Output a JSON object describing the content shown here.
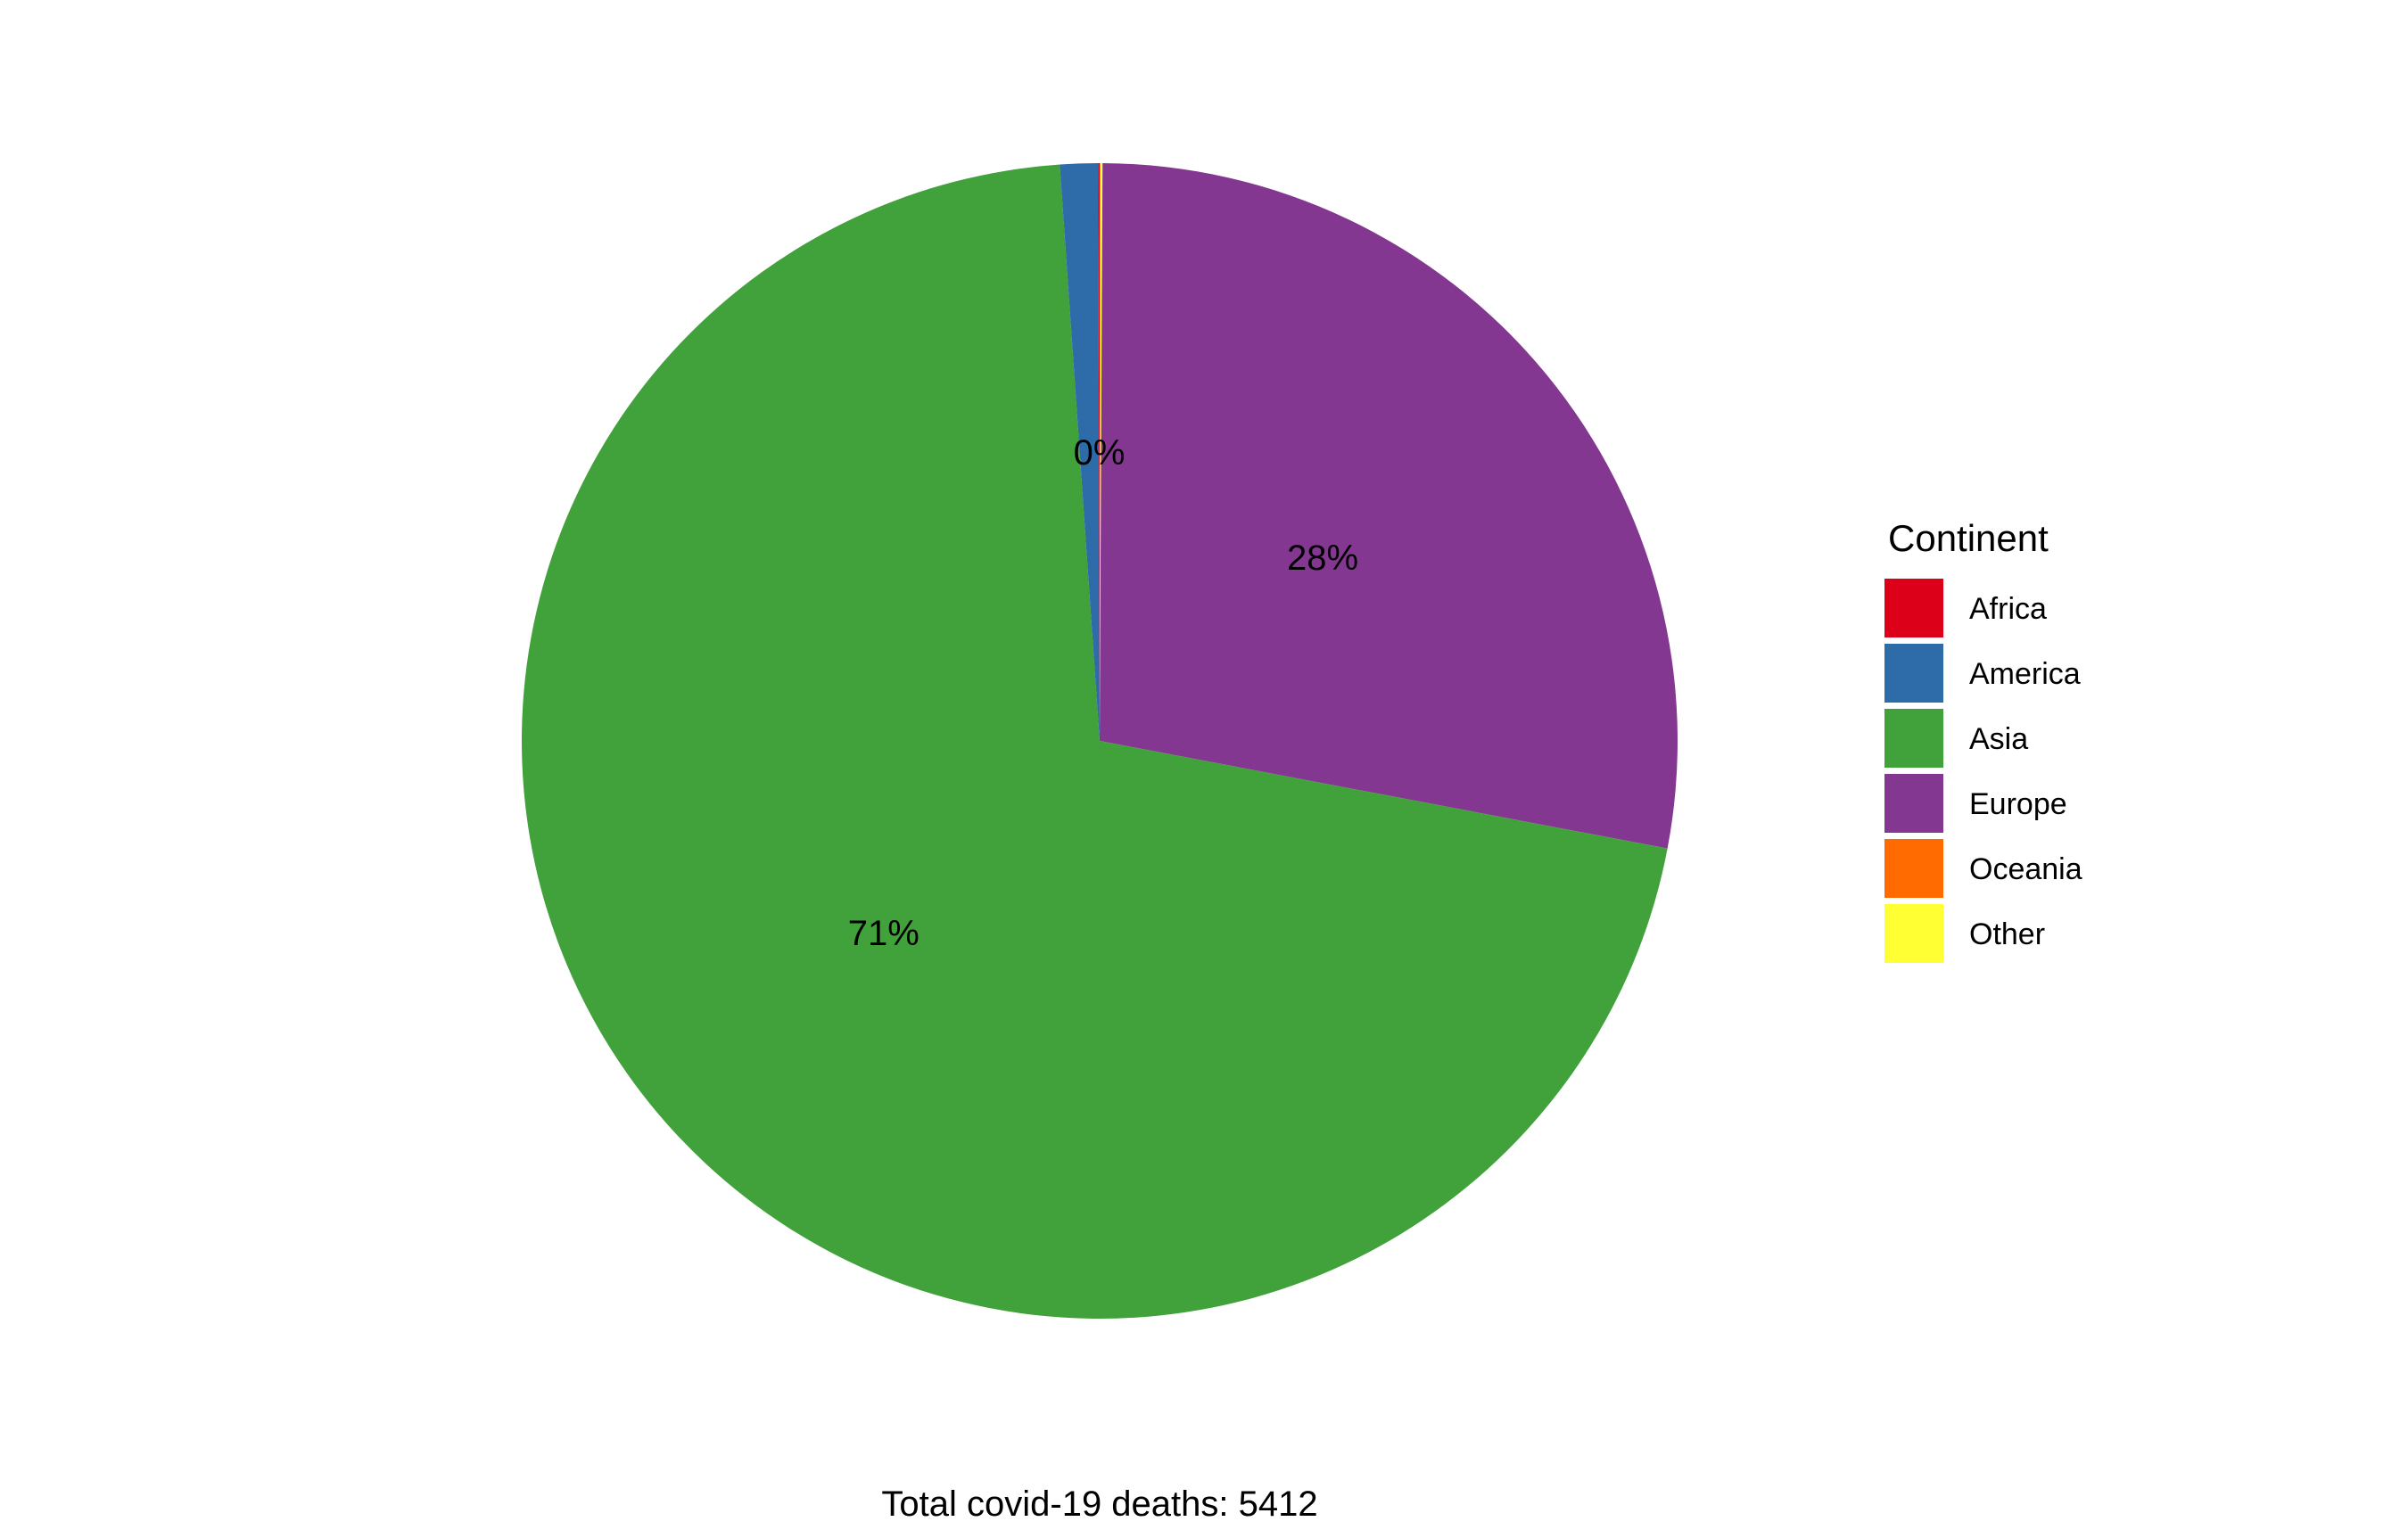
{
  "chart_data": {
    "type": "pie",
    "caption": "Total covid-19 deaths: 5412",
    "legend": {
      "title": "Continent",
      "placement": "right"
    },
    "start_angle_deg": 0,
    "direction": "clockwise",
    "slices": [
      {
        "name": "Oceania",
        "percent": 0.02,
        "label": "",
        "color": "#FF6B00"
      },
      {
        "name": "Other",
        "percent": 0.06,
        "label": "",
        "color": "#FFFF33"
      },
      {
        "name": "Europe",
        "percent": 27.9,
        "label": "28%",
        "color": "#833791"
      },
      {
        "name": "Asia",
        "percent": 70.92,
        "label": "71%",
        "color": "#41A13A"
      },
      {
        "name": "America",
        "percent": 1.06,
        "label": "",
        "color": "#2D6BA9"
      },
      {
        "name": "Africa",
        "percent": 0.04,
        "label": "0%",
        "color": "#DD0019"
      }
    ],
    "legend_order": [
      "Africa",
      "America",
      "Asia",
      "Europe",
      "Oceania",
      "Other"
    ]
  }
}
